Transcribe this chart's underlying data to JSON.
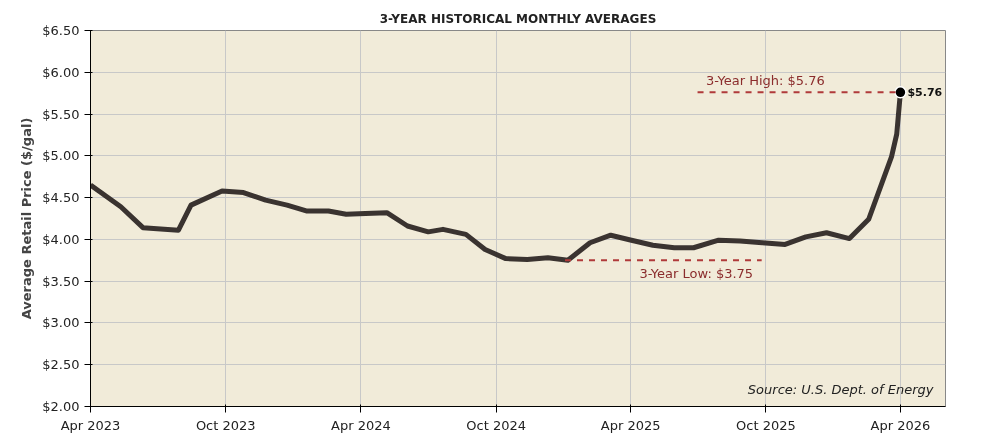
{
  "chart_data": {
    "type": "line",
    "title": "3-YEAR HISTORICAL MONTHLY AVERAGES",
    "ylabel": "Average Retail Price ($/gal)",
    "x": [
      "2023-04-01",
      "2023-05-12",
      "2023-06-11",
      "2023-07-29",
      "2023-08-15",
      "2023-09-26",
      "2023-10-25",
      "2023-11-24",
      "2023-12-23",
      "2024-01-18",
      "2024-02-17",
      "2024-03-12",
      "2024-04-07",
      "2024-05-06",
      "2024-06-03",
      "2024-07-01",
      "2024-07-21",
      "2024-08-21",
      "2024-09-16",
      "2024-10-14",
      "2024-11-12",
      "2024-12-10",
      "2025-01-06",
      "2025-02-05",
      "2025-03-05",
      "2025-04-02",
      "2025-05-01",
      "2025-05-30",
      "2025-06-25",
      "2025-07-29",
      "2025-08-27",
      "2025-09-26",
      "2025-10-27",
      "2025-11-24",
      "2025-12-22",
      "2026-01-22",
      "2026-02-17",
      "2026-03-20",
      "2026-03-27",
      "2026-04-01"
    ],
    "series": [
      {
        "color": "#3a3330",
        "values": [
          4.65,
          4.39,
          4.14,
          4.11,
          4.41,
          4.58,
          4.56,
          4.47,
          4.41,
          4.34,
          4.34,
          4.3,
          4.31,
          4.32,
          4.16,
          4.09,
          4.12,
          4.06,
          3.88,
          3.77,
          3.76,
          3.78,
          3.75,
          3.96,
          4.05,
          3.99,
          3.93,
          3.9,
          3.9,
          3.99,
          3.98,
          3.96,
          3.94,
          4.03,
          4.08,
          4.01,
          4.24,
          4.99,
          5.26,
          5.76
        ],
        "value_labels": [
          null,
          null,
          null,
          null,
          null,
          null,
          null,
          null,
          null,
          null,
          null,
          null,
          null,
          null,
          null,
          null,
          null,
          null,
          null,
          null,
          null,
          null,
          null,
          null,
          null,
          null,
          null,
          null,
          null,
          null,
          null,
          null,
          null,
          null,
          null,
          null,
          null,
          null,
          null,
          "$5.76"
        ]
      }
    ],
    "xlim": [
      "2023-04-01",
      "2026-06-01"
    ],
    "xticks": [
      {
        "value": "2023-04-01",
        "label": "Apr 2023"
      },
      {
        "value": "2023-10-01",
        "label": "Oct 2023"
      },
      {
        "value": "2024-04-01",
        "label": "Apr 2024"
      },
      {
        "value": "2024-10-01",
        "label": "Oct 2024"
      },
      {
        "value": "2025-04-01",
        "label": "Apr 2025"
      },
      {
        "value": "2025-10-01",
        "label": "Oct 2025"
      },
      {
        "value": "2026-04-01",
        "label": "Apr 2026"
      }
    ],
    "ylim": [
      2,
      6.5
    ],
    "yticks": [
      {
        "value": 2,
        "label": "$2.00"
      },
      {
        "value": 2.5,
        "label": "$2.50"
      },
      {
        "value": 3,
        "label": "$3.00"
      },
      {
        "value": 3.5,
        "label": "$3.50"
      },
      {
        "value": 4,
        "label": "$4.00"
      },
      {
        "value": 4.5,
        "label": "$4.50"
      },
      {
        "value": 5,
        "label": "$5.00"
      },
      {
        "value": 5.5,
        "label": "$5.50"
      },
      {
        "value": 6,
        "label": "$6.00"
      },
      {
        "value": 6.5,
        "label": "$6.50"
      }
    ],
    "ref_lines": [
      {
        "axis": "y",
        "value": 5.76,
        "label": "3-Year High: $5.76",
        "color": "#b03a3a",
        "line_style": "dashed"
      },
      {
        "axis": "y",
        "value": 3.75,
        "label": "3-Year Low: $3.75",
        "color": "#b03a3a",
        "line_style": "dashed"
      }
    ],
    "annotations": [
      "Source: U.S. Dept. of Energy"
    ],
    "grid": true
  }
}
